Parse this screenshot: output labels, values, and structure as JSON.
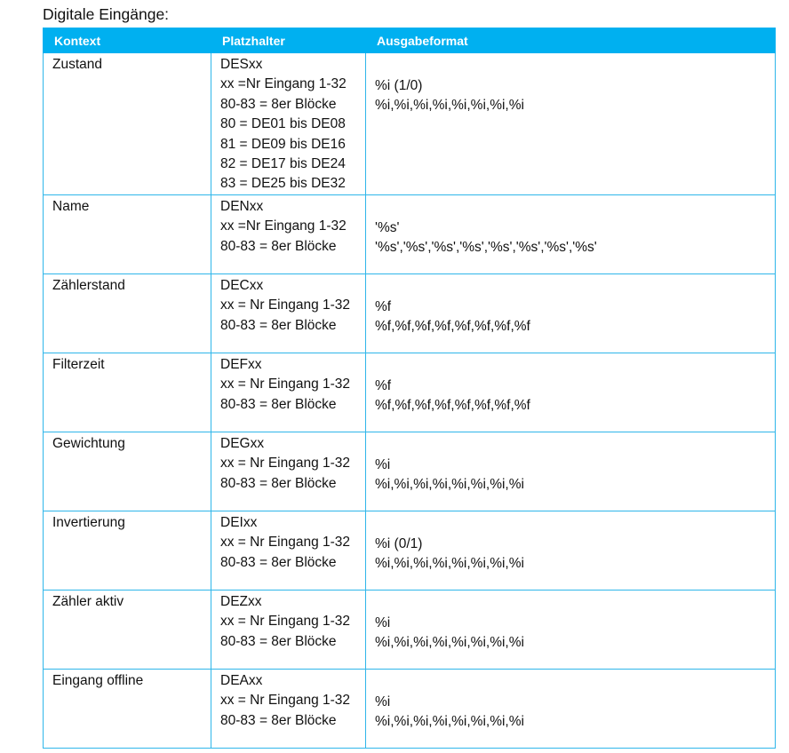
{
  "title": "Digitale Eingänge:",
  "headers": [
    "Kontext",
    "Platzhalter",
    "Ausgabeformat"
  ],
  "header_color": "#00b0f0",
  "rows": [
    {
      "kontext": "Zustand",
      "platzhalter": [
        "DESxx",
        "xx =Nr Eingang 1-32",
        "80-83 = 8er Blöcke",
        "80 = DE01 bis DE08",
        "81 = DE09 bis DE16",
        "82 = DE17 bis DE24",
        "83 = DE25 bis DE32"
      ],
      "ausgabe": [
        "%i (1/0)",
        "%i,%i,%i,%i,%i,%i,%i,%i"
      ]
    },
    {
      "kontext": "Name",
      "platzhalter": [
        "DENxx",
        "xx =Nr Eingang 1-32",
        "80-83 = 8er Blöcke"
      ],
      "ausgabe": [
        "'%s'",
        "'%s','%s','%s','%s','%s','%s','%s','%s'"
      ]
    },
    {
      "kontext": "Zählerstand",
      "platzhalter": [
        "DECxx",
        "xx = Nr Eingang 1-32",
        "80-83 = 8er Blöcke"
      ],
      "ausgabe": [
        "%f",
        "%f,%f,%f,%f,%f,%f,%f,%f"
      ]
    },
    {
      "kontext": "Filterzeit",
      "platzhalter": [
        "DEFxx",
        "xx = Nr Eingang 1-32",
        "80-83 = 8er Blöcke"
      ],
      "ausgabe": [
        "%f",
        "%f,%f,%f,%f,%f,%f,%f,%f"
      ]
    },
    {
      "kontext": "Gewichtung",
      "platzhalter": [
        "DEGxx",
        "xx = Nr Eingang 1-32",
        "80-83 = 8er Blöcke"
      ],
      "ausgabe": [
        "%i",
        "%i,%i,%i,%i,%i,%i,%i,%i"
      ]
    },
    {
      "kontext": "Invertierung",
      "platzhalter": [
        "DEIxx",
        "xx = Nr Eingang 1-32",
        "80-83 = 8er Blöcke"
      ],
      "ausgabe": [
        "%i (0/1)",
        "%i,%i,%i,%i,%i,%i,%i,%i"
      ]
    },
    {
      "kontext": "Zähler aktiv",
      "platzhalter": [
        "DEZxx",
        "xx = Nr Eingang 1-32",
        "80-83 = 8er Blöcke"
      ],
      "ausgabe": [
        "%i",
        "%i,%i,%i,%i,%i,%i,%i,%i"
      ]
    },
    {
      "kontext": "Eingang offline",
      "platzhalter": [
        "DEAxx",
        "xx = Nr Eingang 1-32",
        "80-83 = 8er Blöcke"
      ],
      "ausgabe": [
        "%i",
        "%i,%i,%i,%i,%i,%i,%i,%i"
      ]
    }
  ]
}
